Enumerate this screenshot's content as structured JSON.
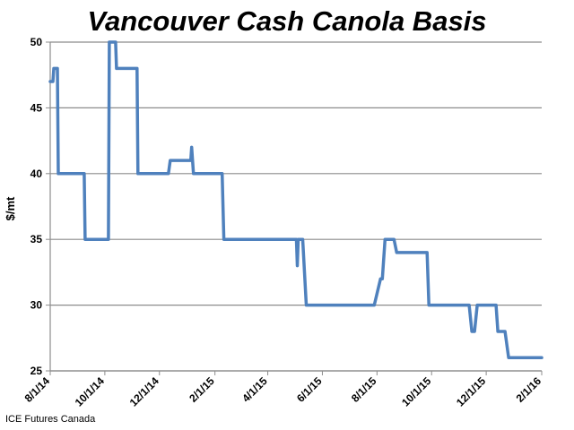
{
  "chart_data": {
    "type": "line",
    "title": "Vancouver Cash Canola Basis",
    "xlabel": "",
    "ylabel": "$/mt",
    "ylim": [
      25,
      50
    ],
    "yticks": [
      25,
      30,
      35,
      40,
      45,
      50
    ],
    "xlim": [
      "2014-08-01",
      "2016-02-01"
    ],
    "xticks": [
      {
        "date": "2014-08-01",
        "label": "8/1/14"
      },
      {
        "date": "2014-10-01",
        "label": "10/1/14"
      },
      {
        "date": "2014-12-01",
        "label": "12/1/14"
      },
      {
        "date": "2015-02-01",
        "label": "2/1/15"
      },
      {
        "date": "2015-04-01",
        "label": "4/1/15"
      },
      {
        "date": "2015-06-01",
        "label": "6/1/15"
      },
      {
        "date": "2015-08-01",
        "label": "8/1/15"
      },
      {
        "date": "2015-10-01",
        "label": "10/1/15"
      },
      {
        "date": "2015-12-01",
        "label": "12/1/15"
      },
      {
        "date": "2016-02-01",
        "label": "2/1/16"
      }
    ],
    "grid": {
      "horizontal": true,
      "vertical": false
    },
    "colors": {
      "series": "#4f81bd",
      "grid": "#8c8c8c",
      "axis": "#8c8c8c"
    },
    "series": [
      {
        "name": "",
        "points": [
          [
            "2014-08-01",
            47
          ],
          [
            "2014-08-04",
            47
          ],
          [
            "2014-08-05",
            48
          ],
          [
            "2014-08-09",
            48
          ],
          [
            "2014-08-10",
            40
          ],
          [
            "2014-09-08",
            40
          ],
          [
            "2014-09-09",
            35
          ],
          [
            "2014-10-05",
            35
          ],
          [
            "2014-10-06",
            50
          ],
          [
            "2014-10-13",
            50
          ],
          [
            "2014-10-14",
            48
          ],
          [
            "2014-11-06",
            48
          ],
          [
            "2014-11-07",
            40
          ],
          [
            "2014-12-11",
            40
          ],
          [
            "2014-12-13",
            41
          ],
          [
            "2015-01-05",
            41
          ],
          [
            "2015-01-06",
            42
          ],
          [
            "2015-01-07",
            41
          ],
          [
            "2015-01-08",
            40
          ],
          [
            "2015-02-09",
            40
          ],
          [
            "2015-02-11",
            35
          ],
          [
            "2015-05-03",
            35
          ],
          [
            "2015-05-04",
            33
          ],
          [
            "2015-05-05",
            35
          ],
          [
            "2015-05-10",
            35
          ],
          [
            "2015-05-14",
            30
          ],
          [
            "2015-07-29",
            30
          ],
          [
            "2015-08-05",
            32
          ],
          [
            "2015-08-07",
            32
          ],
          [
            "2015-08-10",
            35
          ],
          [
            "2015-08-20",
            35
          ],
          [
            "2015-08-23",
            34
          ],
          [
            "2015-09-26",
            34
          ],
          [
            "2015-09-28",
            30
          ],
          [
            "2015-11-12",
            30
          ],
          [
            "2015-11-15",
            28
          ],
          [
            "2015-11-18",
            28
          ],
          [
            "2015-11-21",
            30
          ],
          [
            "2015-12-12",
            30
          ],
          [
            "2015-12-14",
            28
          ],
          [
            "2015-12-22",
            28
          ],
          [
            "2015-12-24",
            27
          ],
          [
            "2015-12-26",
            26
          ],
          [
            "2016-02-01",
            26
          ]
        ]
      }
    ]
  },
  "source": "ICE Futures Canada"
}
